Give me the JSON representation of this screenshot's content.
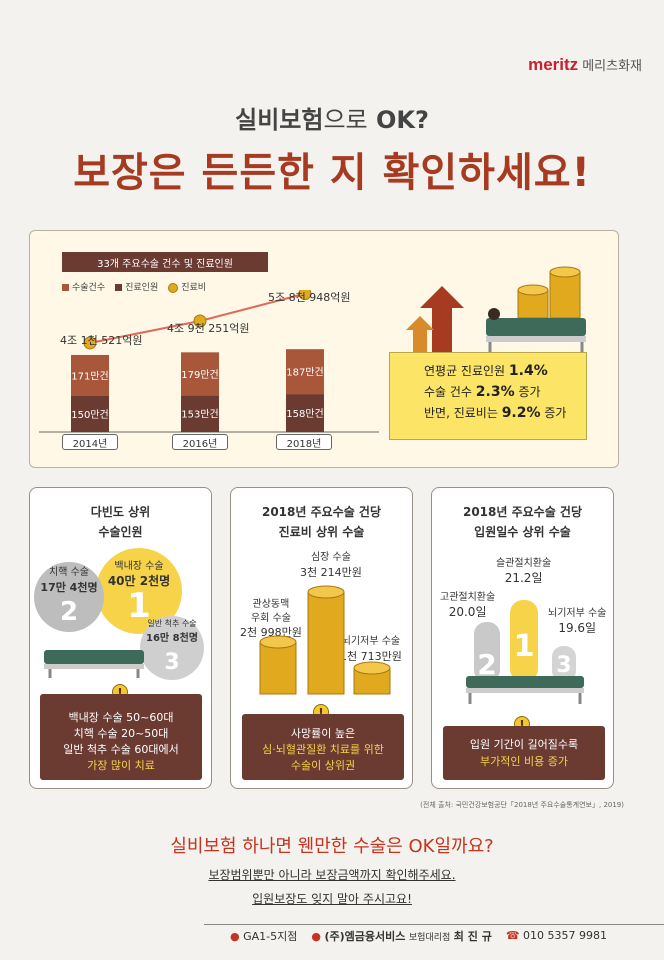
{
  "brand": {
    "name": "meritz",
    "sub": "메리츠화재"
  },
  "header": {
    "subtitle_bold": "실비보험",
    "subtitle_light": "으로",
    "subtitle_end": " OK?",
    "headline": "보장은 든든한 지 확인하세요!"
  },
  "chart_data": {
    "type": "bar",
    "title": "33개 주요수술 건수 및 진료인원",
    "legend": [
      "수술건수",
      "진료인원",
      "진료비"
    ],
    "categories": [
      "2014년",
      "2016년",
      "2018년"
    ],
    "series": [
      {
        "name": "진료인원",
        "values": [
          150,
          153,
          158
        ],
        "labels": [
          "150만건",
          "153만건",
          "158만건"
        ],
        "color": "#6b3a31"
      },
      {
        "name": "수술건수",
        "values": [
          171,
          179,
          187
        ],
        "labels": [
          "171만건",
          "179만건",
          "187만건"
        ],
        "color": "#a9573b"
      },
      {
        "name": "진료비",
        "values": [
          41521,
          49251,
          58948
        ],
        "labels": [
          "4조 1천 521억원",
          "4조 9천 251억원",
          "5조 8천 948억원"
        ],
        "color": "#e0a91e"
      }
    ]
  },
  "summary": {
    "l1a": "연평균 진료인원 ",
    "l1b": "1.4%",
    "l2a": "수술 건수 ",
    "l2b": "2.3%",
    "l2c": " 증가",
    "l3a": "반면, 진료비는 ",
    "l3b": "9.2%",
    "l3c": " 증가"
  },
  "card1": {
    "title1": "다빈도 상위",
    "title2": "수술인원",
    "r1a": "백내장 수술",
    "r1b": "40만 2천명",
    "r2a": "치핵 수술",
    "r2b": "17만 4천명",
    "r3a": "일반 척추 수술",
    "r3b": "16만 8천명",
    "n1": "백내장 수술 50~60대",
    "n2": "치핵 수술 20~50대",
    "n3": "일반 척추 수술 60대에서",
    "n4": "가장 많이 치료"
  },
  "card2": {
    "title1": "2018년 주요수술 건당",
    "title2": "진료비 상위 수술",
    "a1": "심장 수술",
    "a2": "3천 214만원",
    "b1": "관상동맥",
    "b2": "우회 수술",
    "b3": "2천 998만원",
    "c1": "뇌기저부 수술",
    "c2": "1천 713만원",
    "n1": "사망률이 높은",
    "n2": "심·뇌혈관질환 치료를 위한",
    "n3": "수술이 상위권"
  },
  "card3": {
    "title1": "2018년 주요수술 건당",
    "title2": "입원일수 상위 수술",
    "a1": "슬관절치환술",
    "a2": "21.2일",
    "b1": "고관절치환술",
    "b2": "20.0일",
    "c1": "뇌기저부 수술",
    "c2": "19.6일",
    "n1": "입원 기간이 길어질수록",
    "n2": "부가적인 비용 증가"
  },
  "source": "(전체 출처: 국민건강보험공단「2018년 주요수술통계연보」, 2019)",
  "closing": {
    "question": "실비보험 하나면 웬만한 수술은 OK일까요?",
    "line1": "보장범위뿐만 아니라 보장금액까지 확인해주세요.",
    "line2": "입원보장도 잊지 말아 주시고요!"
  },
  "footer": {
    "branch": "GA1-5지점",
    "company": "(주)엠금융서비스",
    "role": "보험대리점",
    "name": "최 진 규",
    "phone": "010 5357 9981"
  }
}
